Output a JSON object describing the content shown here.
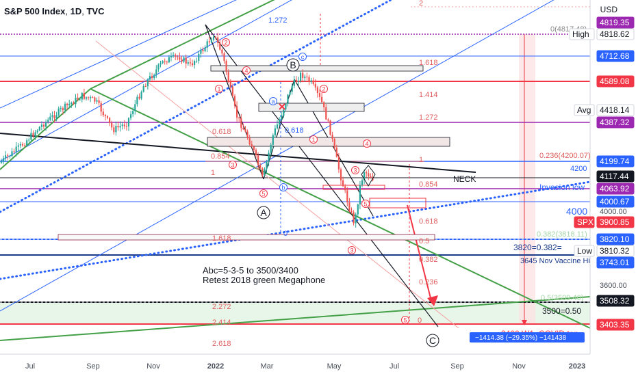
{
  "header": {
    "symbol": "S&P 500 Index",
    "interval": "1D",
    "source": "TVC",
    "currency": "USD"
  },
  "chart_data": {
    "type": "candlestick",
    "x_ticks": [
      "Jul",
      "Sep",
      "Nov",
      "2022",
      "Mar",
      "May",
      "Jul",
      "Sep",
      "Nov",
      "2023"
    ],
    "y_ticks": [
      3600.0,
      4000
    ],
    "price_tags": [
      {
        "label": "High",
        "value": "4818.62",
        "style": "white"
      },
      {
        "label": "",
        "value": "4819.35",
        "style": "purple"
      },
      {
        "label": "",
        "value": "4712.68",
        "style": "blue"
      },
      {
        "label": "",
        "value": "4589.08",
        "style": "red"
      },
      {
        "label": "Avg",
        "value": "4418.14",
        "style": "white"
      },
      {
        "label": "",
        "value": "4387.32",
        "style": "purple"
      },
      {
        "label": "",
        "value": "4199.74",
        "style": "blue"
      },
      {
        "label": "",
        "value": "4117.44",
        "style": "black"
      },
      {
        "label": "",
        "value": "4063.92",
        "style": "purple"
      },
      {
        "label": "",
        "value": "4000.67",
        "style": "blue"
      },
      {
        "label": "SPX",
        "value": "3900.85",
        "style": "red"
      },
      {
        "label": "",
        "value": "3820.10",
        "style": "blue"
      },
      {
        "label": "Low",
        "value": "3810.32",
        "style": "white"
      },
      {
        "label": "",
        "value": "3743.01",
        "style": "blue"
      },
      {
        "label": "",
        "value": "3508.32",
        "style": "black"
      },
      {
        "label": "",
        "value": "3403.35",
        "style": "red"
      }
    ],
    "fib_labels": [
      {
        "text": "0(4817.48)"
      },
      {
        "text": "1.618"
      },
      {
        "text": "1.414"
      },
      {
        "text": "1.272"
      },
      {
        "text": "1.272"
      },
      {
        "text": "1"
      },
      {
        "text": "0.618"
      },
      {
        "text": "0.854"
      },
      {
        "text": "1"
      },
      {
        "text": "0.618"
      },
      {
        "text": "0.854"
      },
      {
        "text": "0.618"
      },
      {
        "text": "0.236(4200.07)"
      },
      {
        "text": "0.382(3818.11)"
      },
      {
        "text": "1.618"
      },
      {
        "text": "0"
      },
      {
        "text": "0.5"
      },
      {
        "text": "0.382"
      },
      {
        "text": "0.236"
      },
      {
        "text": "0.5(3509.40)"
      },
      {
        "text": "2.272"
      },
      {
        "text": "2.414"
      },
      {
        "text": "2.618"
      },
      {
        "text": "0"
      },
      {
        "text": "2"
      }
    ],
    "annotations": [
      {
        "text": "NECK"
      },
      {
        "text": "Invasion low"
      },
      {
        "text": "4200"
      },
      {
        "text": "4000"
      },
      {
        "text": "3820=0.382="
      },
      {
        "text": "3645 Nov Vaccine Hi"
      },
      {
        "text": "3500=0.50"
      },
      {
        "text": "3400 W1=COVID top"
      },
      {
        "text": "Abc=5-3-5 to 3500/3400"
      },
      {
        "text": "Retest 2018 green Megaphone"
      },
      {
        "text": "−1414.38 (−29.35%) −141438"
      }
    ],
    "wave_labels_large": [
      "A",
      "B",
      "C"
    ],
    "wave_labels_small": [
      {
        "text": "2"
      },
      {
        "text": "1"
      },
      {
        "text": "4"
      },
      {
        "text": "3"
      },
      {
        "text": "5"
      },
      {
        "text": "1"
      },
      {
        "text": "2"
      },
      {
        "text": "3"
      },
      {
        "text": "4"
      },
      {
        "text": "5"
      },
      {
        "text": "3"
      },
      {
        "text": "5"
      }
    ],
    "wave_labels_blue": [
      "a",
      "b",
      "c"
    ]
  },
  "colors": {
    "bull": "#26a69a",
    "bear": "#ef5350",
    "fib": "#e06060",
    "blue_line": "#2962ff",
    "green_line": "#43a047",
    "purple_line": "#9c27b0",
    "red_line": "#f23645"
  }
}
